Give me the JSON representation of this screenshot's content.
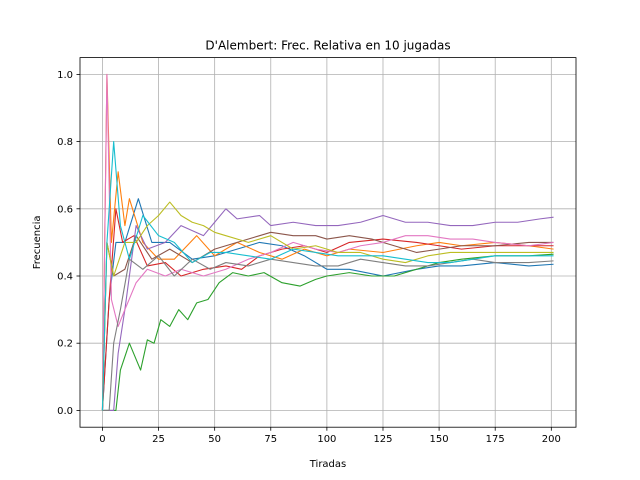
{
  "chart_data": {
    "type": "line",
    "title": "D'Alembert: Frec. Relativa en 10 jugadas",
    "xlabel": "Tiradas",
    "ylabel": "Frecuencia",
    "xlim": [
      -10,
      211
    ],
    "ylim": [
      -0.05,
      1.05
    ],
    "xticks": [
      0,
      25,
      50,
      75,
      100,
      125,
      150,
      175,
      200
    ],
    "yticks": [
      0.0,
      0.2,
      0.4,
      0.6,
      0.8,
      1.0
    ],
    "ytick_labels": [
      "0.0",
      "0.2",
      "0.4",
      "0.6",
      "0.8",
      "1.0"
    ],
    "grid": true,
    "series": [
      {
        "color": "#1f77b4",
        "points": [
          [
            0,
            0
          ],
          [
            3,
            0.33
          ],
          [
            6,
            0.5
          ],
          [
            10,
            0.5
          ],
          [
            16,
            0.63
          ],
          [
            22,
            0.5
          ],
          [
            30,
            0.5
          ],
          [
            40,
            0.45
          ],
          [
            50,
            0.46
          ],
          [
            60,
            0.48
          ],
          [
            70,
            0.5
          ],
          [
            80,
            0.49
          ],
          [
            90,
            0.46
          ],
          [
            100,
            0.42
          ],
          [
            110,
            0.42
          ],
          [
            125,
            0.4
          ],
          [
            140,
            0.42
          ],
          [
            150,
            0.43
          ],
          [
            160,
            0.43
          ],
          [
            175,
            0.44
          ],
          [
            190,
            0.43
          ],
          [
            201,
            0.435
          ]
        ]
      },
      {
        "color": "#ff7f0e",
        "points": [
          [
            0,
            0
          ],
          [
            2,
            1.0
          ],
          [
            4,
            0.5
          ],
          [
            7,
            0.71
          ],
          [
            10,
            0.55
          ],
          [
            12,
            0.63
          ],
          [
            18,
            0.5
          ],
          [
            25,
            0.45
          ],
          [
            32,
            0.45
          ],
          [
            42,
            0.52
          ],
          [
            50,
            0.46
          ],
          [
            60,
            0.5
          ],
          [
            70,
            0.47
          ],
          [
            80,
            0.45
          ],
          [
            90,
            0.48
          ],
          [
            100,
            0.46
          ],
          [
            110,
            0.48
          ],
          [
            125,
            0.47
          ],
          [
            140,
            0.49
          ],
          [
            150,
            0.5
          ],
          [
            160,
            0.49
          ],
          [
            175,
            0.5
          ],
          [
            190,
            0.49
          ],
          [
            201,
            0.48
          ]
        ]
      },
      {
        "color": "#2ca02c",
        "points": [
          [
            0,
            0
          ],
          [
            6,
            0
          ],
          [
            8,
            0.12
          ],
          [
            12,
            0.2
          ],
          [
            17,
            0.12
          ],
          [
            20,
            0.21
          ],
          [
            23,
            0.2
          ],
          [
            26,
            0.27
          ],
          [
            30,
            0.25
          ],
          [
            34,
            0.3
          ],
          [
            38,
            0.27
          ],
          [
            42,
            0.32
          ],
          [
            47,
            0.33
          ],
          [
            52,
            0.38
          ],
          [
            58,
            0.41
          ],
          [
            65,
            0.4
          ],
          [
            72,
            0.41
          ],
          [
            80,
            0.38
          ],
          [
            88,
            0.37
          ],
          [
            95,
            0.39
          ],
          [
            100,
            0.4
          ],
          [
            110,
            0.41
          ],
          [
            120,
            0.4
          ],
          [
            130,
            0.4
          ],
          [
            140,
            0.42
          ],
          [
            150,
            0.44
          ],
          [
            160,
            0.45
          ],
          [
            175,
            0.46
          ],
          [
            190,
            0.46
          ],
          [
            201,
            0.465
          ]
        ]
      },
      {
        "color": "#d62728",
        "points": [
          [
            0,
            0
          ],
          [
            3,
            0.33
          ],
          [
            6,
            0.6
          ],
          [
            9,
            0.5
          ],
          [
            14,
            0.52
          ],
          [
            20,
            0.43
          ],
          [
            28,
            0.44
          ],
          [
            35,
            0.4
          ],
          [
            45,
            0.42
          ],
          [
            55,
            0.43
          ],
          [
            62,
            0.42
          ],
          [
            70,
            0.46
          ],
          [
            80,
            0.48
          ],
          [
            90,
            0.49
          ],
          [
            100,
            0.47
          ],
          [
            110,
            0.5
          ],
          [
            125,
            0.51
          ],
          [
            140,
            0.5
          ],
          [
            150,
            0.49
          ],
          [
            160,
            0.48
          ],
          [
            175,
            0.49
          ],
          [
            190,
            0.49
          ],
          [
            201,
            0.49
          ]
        ]
      },
      {
        "color": "#9467bd",
        "points": [
          [
            0,
            0
          ],
          [
            5,
            0
          ],
          [
            7,
            0.17
          ],
          [
            10,
            0.3
          ],
          [
            15,
            0.55
          ],
          [
            20,
            0.48
          ],
          [
            28,
            0.5
          ],
          [
            35,
            0.55
          ],
          [
            45,
            0.52
          ],
          [
            50,
            0.56
          ],
          [
            55,
            0.6
          ],
          [
            60,
            0.57
          ],
          [
            70,
            0.58
          ],
          [
            75,
            0.55
          ],
          [
            85,
            0.56
          ],
          [
            95,
            0.55
          ],
          [
            105,
            0.55
          ],
          [
            115,
            0.56
          ],
          [
            125,
            0.58
          ],
          [
            135,
            0.56
          ],
          [
            145,
            0.56
          ],
          [
            155,
            0.55
          ],
          [
            165,
            0.55
          ],
          [
            175,
            0.56
          ],
          [
            185,
            0.56
          ],
          [
            195,
            0.57
          ],
          [
            201,
            0.575
          ]
        ]
      },
      {
        "color": "#8c564b",
        "points": [
          [
            0,
            0
          ],
          [
            2,
            0.5
          ],
          [
            5,
            0.4
          ],
          [
            10,
            0.42
          ],
          [
            15,
            0.52
          ],
          [
            22,
            0.45
          ],
          [
            30,
            0.48
          ],
          [
            40,
            0.44
          ],
          [
            50,
            0.48
          ],
          [
            60,
            0.5
          ],
          [
            70,
            0.52
          ],
          [
            75,
            0.53
          ],
          [
            85,
            0.52
          ],
          [
            95,
            0.52
          ],
          [
            100,
            0.51
          ],
          [
            110,
            0.52
          ],
          [
            120,
            0.51
          ],
          [
            130,
            0.49
          ],
          [
            140,
            0.47
          ],
          [
            150,
            0.48
          ],
          [
            160,
            0.49
          ],
          [
            175,
            0.49
          ],
          [
            190,
            0.5
          ],
          [
            201,
            0.5
          ]
        ]
      },
      {
        "color": "#e377c2",
        "points": [
          [
            0,
            0
          ],
          [
            2,
            1.0
          ],
          [
            4,
            0.33
          ],
          [
            7,
            0.25
          ],
          [
            10,
            0.3
          ],
          [
            15,
            0.38
          ],
          [
            20,
            0.42
          ],
          [
            28,
            0.4
          ],
          [
            35,
            0.42
          ],
          [
            45,
            0.4
          ],
          [
            55,
            0.42
          ],
          [
            65,
            0.45
          ],
          [
            75,
            0.47
          ],
          [
            85,
            0.5
          ],
          [
            95,
            0.48
          ],
          [
            105,
            0.47
          ],
          [
            115,
            0.49
          ],
          [
            125,
            0.5
          ],
          [
            135,
            0.52
          ],
          [
            145,
            0.52
          ],
          [
            155,
            0.51
          ],
          [
            165,
            0.51
          ],
          [
            175,
            0.5
          ],
          [
            190,
            0.49
          ],
          [
            201,
            0.5
          ]
        ]
      },
      {
        "color": "#7f7f7f",
        "points": [
          [
            0,
            0
          ],
          [
            3,
            0
          ],
          [
            5,
            0.2
          ],
          [
            8,
            0.3
          ],
          [
            12,
            0.45
          ],
          [
            18,
            0.42
          ],
          [
            25,
            0.46
          ],
          [
            32,
            0.4
          ],
          [
            40,
            0.45
          ],
          [
            48,
            0.42
          ],
          [
            55,
            0.44
          ],
          [
            65,
            0.43
          ],
          [
            75,
            0.45
          ],
          [
            85,
            0.44
          ],
          [
            95,
            0.43
          ],
          [
            105,
            0.43
          ],
          [
            115,
            0.45
          ],
          [
            125,
            0.44
          ],
          [
            135,
            0.43
          ],
          [
            145,
            0.43
          ],
          [
            155,
            0.44
          ],
          [
            165,
            0.45
          ],
          [
            175,
            0.44
          ],
          [
            190,
            0.44
          ],
          [
            201,
            0.445
          ]
        ]
      },
      {
        "color": "#bcbd22",
        "points": [
          [
            0,
            0
          ],
          [
            2,
            0.5
          ],
          [
            5,
            0.4
          ],
          [
            10,
            0.5
          ],
          [
            15,
            0.5
          ],
          [
            20,
            0.55
          ],
          [
            25,
            0.58
          ],
          [
            30,
            0.62
          ],
          [
            35,
            0.58
          ],
          [
            40,
            0.56
          ],
          [
            45,
            0.55
          ],
          [
            50,
            0.53
          ],
          [
            55,
            0.52
          ],
          [
            65,
            0.5
          ],
          [
            75,
            0.52
          ],
          [
            85,
            0.48
          ],
          [
            95,
            0.49
          ],
          [
            105,
            0.47
          ],
          [
            115,
            0.47
          ],
          [
            125,
            0.45
          ],
          [
            135,
            0.44
          ],
          [
            145,
            0.46
          ],
          [
            155,
            0.47
          ],
          [
            165,
            0.47
          ],
          [
            175,
            0.47
          ],
          [
            190,
            0.47
          ],
          [
            201,
            0.47
          ]
        ]
      },
      {
        "color": "#17becf",
        "points": [
          [
            0,
            0
          ],
          [
            2,
            0.5
          ],
          [
            5,
            0.8
          ],
          [
            8,
            0.55
          ],
          [
            12,
            0.45
          ],
          [
            18,
            0.58
          ],
          [
            25,
            0.52
          ],
          [
            32,
            0.5
          ],
          [
            40,
            0.44
          ],
          [
            48,
            0.47
          ],
          [
            55,
            0.47
          ],
          [
            65,
            0.46
          ],
          [
            75,
            0.45
          ],
          [
            85,
            0.48
          ],
          [
            95,
            0.47
          ],
          [
            105,
            0.46
          ],
          [
            115,
            0.46
          ],
          [
            125,
            0.46
          ],
          [
            135,
            0.45
          ],
          [
            145,
            0.44
          ],
          [
            155,
            0.44
          ],
          [
            165,
            0.45
          ],
          [
            175,
            0.46
          ],
          [
            190,
            0.46
          ],
          [
            201,
            0.46
          ]
        ]
      }
    ]
  }
}
